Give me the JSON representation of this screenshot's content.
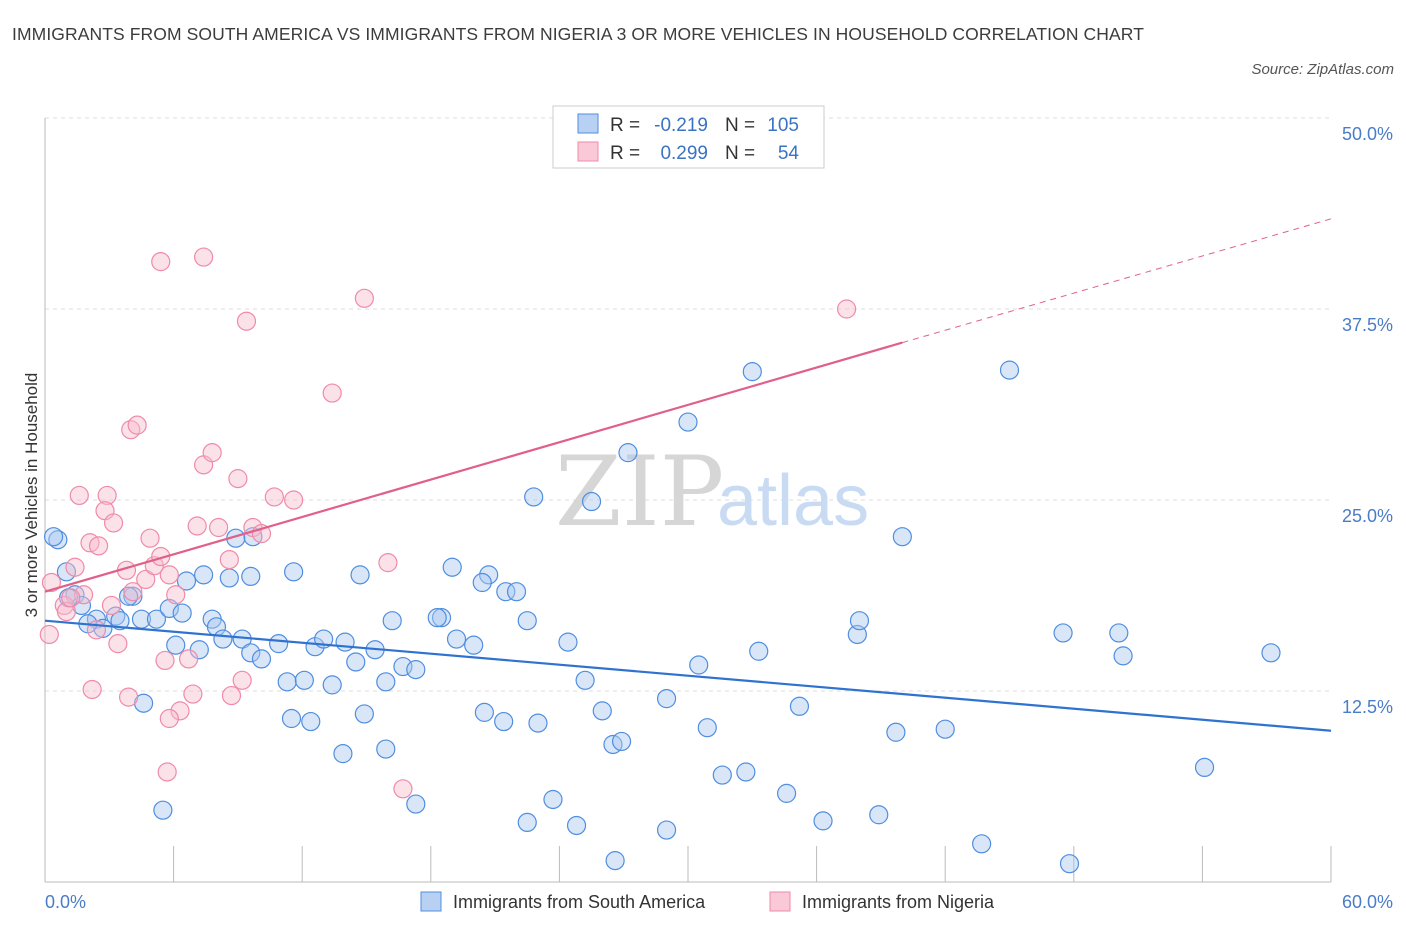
{
  "header": {
    "title": "IMMIGRANTS FROM SOUTH AMERICA VS IMMIGRANTS FROM NIGERIA 3 OR MORE VEHICLES IN HOUSEHOLD CORRELATION CHART",
    "source": "Source: ZipAtlas.com"
  },
  "chart_data": {
    "type": "scatter",
    "ylabel": "3 or more Vehicles in Household",
    "x_tick_labels": [
      "0.0%",
      "60.0%"
    ],
    "y_tick_labels": [
      "12.5%",
      "25.0%",
      "37.5%",
      "50.0%"
    ],
    "y_ticks": [
      12.5,
      25.0,
      37.5,
      50.0
    ],
    "xlim": [
      0,
      60
    ],
    "ylim": [
      0,
      50
    ],
    "grid": true,
    "legend_position": "top-center",
    "watermark": "ZIPatlas",
    "colors": {
      "south_america": "#4f8ee0",
      "nigeria": "#f08aaa",
      "south_america_line": "#2f72d0",
      "nigeria_line": "#e0608a"
    },
    "legend": [
      {
        "r_label": "R =",
        "r_value": "-0.219",
        "n_label": "N =",
        "n_value": "105"
      },
      {
        "r_label": "R =",
        "r_value": "0.299",
        "n_label": "N =",
        "n_value": "54"
      }
    ],
    "series": [
      {
        "name": "Immigrants from South America",
        "trend": {
          "x": [
            0,
            60
          ],
          "y": [
            17.1,
            9.9
          ]
        },
        "points": [
          [
            0.6,
            22.4
          ],
          [
            1.0,
            20.3
          ],
          [
            1.4,
            18.8
          ],
          [
            1.7,
            18.1
          ],
          [
            2.4,
            17.2
          ],
          [
            2.7,
            16.6
          ],
          [
            3.3,
            17.4
          ],
          [
            3.5,
            17.1
          ],
          [
            4.1,
            18.7
          ],
          [
            4.5,
            17.2
          ],
          [
            5.2,
            17.2
          ],
          [
            5.8,
            17.9
          ],
          [
            6.1,
            15.5
          ],
          [
            6.4,
            17.6
          ],
          [
            6.6,
            19.7
          ],
          [
            7.2,
            15.2
          ],
          [
            7.4,
            20.1
          ],
          [
            7.8,
            17.2
          ],
          [
            8.0,
            16.7
          ],
          [
            8.3,
            15.9
          ],
          [
            9.2,
            15.9
          ],
          [
            9.6,
            15.0
          ],
          [
            10.1,
            14.6
          ],
          [
            10.9,
            15.6
          ],
          [
            11.3,
            13.1
          ],
          [
            12.1,
            13.2
          ],
          [
            12.6,
            15.4
          ],
          [
            13.0,
            15.9
          ],
          [
            13.4,
            12.9
          ],
          [
            14.0,
            15.7
          ],
          [
            14.5,
            14.4
          ],
          [
            15.4,
            15.2
          ],
          [
            15.9,
            13.1
          ],
          [
            16.2,
            17.1
          ],
          [
            16.7,
            14.1
          ],
          [
            17.3,
            13.9
          ],
          [
            18.5,
            17.3
          ],
          [
            18.3,
            17.3
          ],
          [
            19.2,
            15.9
          ],
          [
            20.0,
            15.5
          ],
          [
            20.7,
            20.1
          ],
          [
            21.5,
            19.0
          ],
          [
            22.5,
            17.1
          ],
          [
            24.4,
            15.7
          ],
          [
            25.2,
            13.2
          ],
          [
            26.5,
            9.0
          ],
          [
            3.9,
            18.7
          ],
          [
            2.0,
            16.9
          ],
          [
            1.1,
            18.6
          ],
          [
            0.4,
            22.6
          ],
          [
            9.7,
            22.6
          ],
          [
            8.9,
            22.5
          ],
          [
            11.6,
            20.3
          ],
          [
            14.7,
            20.1
          ],
          [
            19.0,
            20.6
          ],
          [
            20.4,
            19.6
          ],
          [
            22.0,
            19.0
          ],
          [
            22.8,
            25.2
          ],
          [
            25.5,
            24.9
          ],
          [
            27.2,
            28.1
          ],
          [
            30.0,
            30.1
          ],
          [
            30.5,
            14.2
          ],
          [
            33.3,
            15.1
          ],
          [
            33.0,
            33.4
          ],
          [
            35.2,
            11.5
          ],
          [
            37.9,
            16.2
          ],
          [
            38.0,
            17.1
          ],
          [
            39.7,
            9.8
          ],
          [
            40.0,
            22.6
          ],
          [
            42.0,
            10.0
          ],
          [
            45.0,
            33.5
          ],
          [
            47.5,
            16.3
          ],
          [
            50.1,
            16.3
          ],
          [
            50.3,
            14.8
          ],
          [
            54.1,
            7.5
          ],
          [
            57.2,
            15.0
          ],
          [
            20.5,
            11.1
          ],
          [
            21.4,
            10.5
          ],
          [
            23.0,
            10.4
          ],
          [
            26.0,
            11.2
          ],
          [
            26.9,
            9.2
          ],
          [
            29.0,
            12.0
          ],
          [
            30.9,
            10.1
          ],
          [
            31.6,
            7.0
          ],
          [
            32.7,
            7.2
          ],
          [
            34.6,
            5.8
          ],
          [
            36.3,
            4.0
          ],
          [
            38.9,
            4.4
          ],
          [
            43.7,
            2.5
          ],
          [
            47.8,
            1.2
          ],
          [
            4.6,
            11.7
          ],
          [
            5.5,
            4.7
          ],
          [
            8.6,
            19.9
          ],
          [
            9.6,
            20.0
          ],
          [
            11.5,
            10.7
          ],
          [
            12.4,
            10.5
          ],
          [
            13.9,
            8.4
          ],
          [
            14.9,
            11.0
          ],
          [
            15.9,
            8.7
          ],
          [
            17.3,
            5.1
          ],
          [
            22.5,
            3.9
          ],
          [
            23.7,
            5.4
          ],
          [
            24.8,
            3.7
          ],
          [
            26.6,
            1.4
          ],
          [
            29.0,
            3.4
          ]
        ]
      },
      {
        "name": "Immigrants from Nigeria",
        "trend": {
          "x": [
            0,
            40
          ],
          "y": [
            19.0,
            35.3
          ]
        },
        "trend_extension": {
          "x": [
            40,
            60
          ],
          "y": [
            35.3,
            43.4
          ]
        },
        "points": [
          [
            0.2,
            16.2
          ],
          [
            0.3,
            19.6
          ],
          [
            0.9,
            18.1
          ],
          [
            1.0,
            17.7
          ],
          [
            1.4,
            20.6
          ],
          [
            1.6,
            25.3
          ],
          [
            2.1,
            22.2
          ],
          [
            2.5,
            22.0
          ],
          [
            2.9,
            25.3
          ],
          [
            2.8,
            24.3
          ],
          [
            3.2,
            23.5
          ],
          [
            3.4,
            15.6
          ],
          [
            3.8,
            20.4
          ],
          [
            4.0,
            29.6
          ],
          [
            4.3,
            29.9
          ],
          [
            4.7,
            19.8
          ],
          [
            4.9,
            22.5
          ],
          [
            5.1,
            20.7
          ],
          [
            5.4,
            21.3
          ],
          [
            5.6,
            14.5
          ],
          [
            5.8,
            20.1
          ],
          [
            6.1,
            18.8
          ],
          [
            6.7,
            14.6
          ],
          [
            6.9,
            12.3
          ],
          [
            7.1,
            23.3
          ],
          [
            7.4,
            27.3
          ],
          [
            7.8,
            28.1
          ],
          [
            8.1,
            23.2
          ],
          [
            8.6,
            21.1
          ],
          [
            9.0,
            26.4
          ],
          [
            9.2,
            13.2
          ],
          [
            9.4,
            36.7
          ],
          [
            9.7,
            23.2
          ],
          [
            10.1,
            22.8
          ],
          [
            10.7,
            25.2
          ],
          [
            11.6,
            25.0
          ],
          [
            13.4,
            32.0
          ],
          [
            14.9,
            38.2
          ],
          [
            16.0,
            20.9
          ],
          [
            16.7,
            6.1
          ],
          [
            37.4,
            37.5
          ],
          [
            7.4,
            40.9
          ],
          [
            5.4,
            40.6
          ],
          [
            6.3,
            11.2
          ],
          [
            4.1,
            19.0
          ],
          [
            3.1,
            18.1
          ],
          [
            2.4,
            16.5
          ],
          [
            1.8,
            18.8
          ],
          [
            1.2,
            18.6
          ],
          [
            2.2,
            12.6
          ],
          [
            3.9,
            12.1
          ],
          [
            5.8,
            10.7
          ],
          [
            5.7,
            7.2
          ],
          [
            8.7,
            12.2
          ]
        ]
      }
    ]
  },
  "bottom_legend": {
    "items": [
      {
        "label": "Immigrants from South America"
      },
      {
        "label": "Immigrants from Nigeria"
      }
    ]
  }
}
